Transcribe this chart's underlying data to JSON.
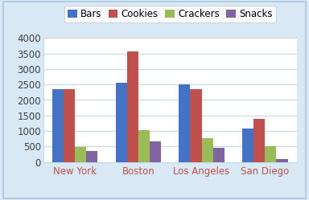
{
  "categories": [
    "New York",
    "Boston",
    "Los Angeles",
    "San Diego"
  ],
  "series": {
    "Bars": [
      2350,
      2570,
      2510,
      1090
    ],
    "Cookies": [
      2360,
      3560,
      2340,
      1380
    ],
    "Crackers": [
      480,
      1040,
      760,
      520
    ],
    "Snacks": [
      360,
      670,
      450,
      105
    ]
  },
  "colors": {
    "Bars": "#4472C4",
    "Cookies": "#C0504D",
    "Crackers": "#9BBB59",
    "Snacks": "#8064A2"
  },
  "ylim": [
    0,
    4000
  ],
  "yticks": [
    0,
    500,
    1000,
    1500,
    2000,
    2500,
    3000,
    3500,
    4000
  ],
  "chart_bg": "#FFFFFF",
  "outer_bg": "#D9E8F5",
  "border_color": "#A8C8E0",
  "grid_color": "#C5D9E8",
  "xticklabel_color": "#C0504D",
  "yticklabel_color": "#404040",
  "tick_label_fontsize": 8.5,
  "legend_fontsize": 8.5,
  "bar_width": 0.18
}
